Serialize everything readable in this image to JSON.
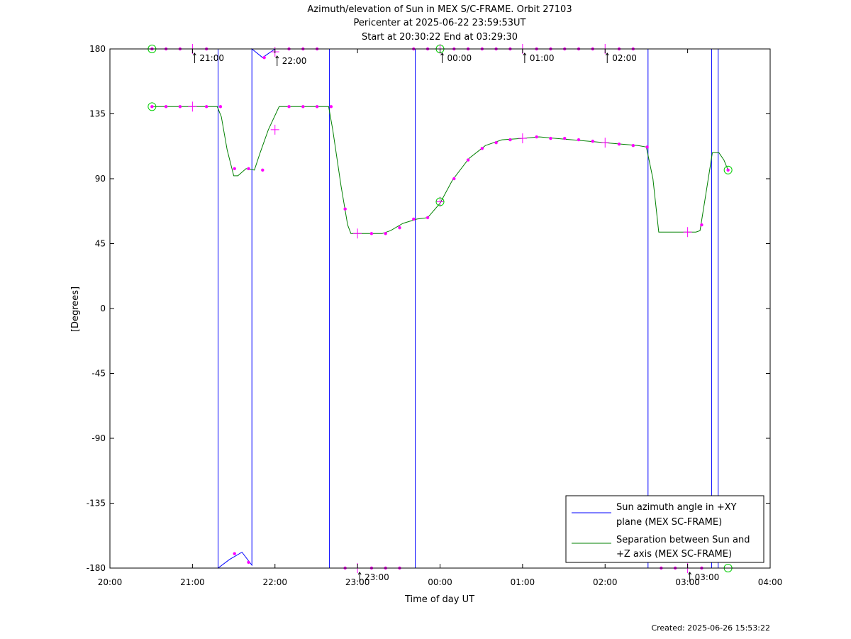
{
  "titles": [
    "Azimuth/elevation of Sun in MEX S/C-FRAME.  Orbit 27103",
    "Pericenter at 2025-06-22 23:59:53UT",
    "Start at 20:30:22 End at 03:29:30"
  ],
  "footer": "Created: 2025-06-26 15:53:22",
  "chart_data": {
    "type": "line",
    "title": "Azimuth/elevation of Sun in MEX S/C-FRAME.  Orbit 27103",
    "xlabel": "Time of day UT",
    "ylabel": "[Degrees]",
    "xlim": [
      20.0,
      28.0
    ],
    "ylim": [
      -180,
      180
    ],
    "x_ticks": [
      {
        "x": 20,
        "label": "20:00"
      },
      {
        "x": 21,
        "label": "21:00"
      },
      {
        "x": 22,
        "label": "22:00"
      },
      {
        "x": 23,
        "label": "23:00"
      },
      {
        "x": 24,
        "label": "00:00"
      },
      {
        "x": 25,
        "label": "01:00"
      },
      {
        "x": 26,
        "label": "02:00"
      },
      {
        "x": 27,
        "label": "03:00"
      },
      {
        "x": 28,
        "label": "04:00"
      }
    ],
    "y_ticks": [
      {
        "y": 180,
        "label": "180"
      },
      {
        "y": 135,
        "label": "135"
      },
      {
        "y": 90,
        "label": "90"
      },
      {
        "y": 45,
        "label": "45"
      },
      {
        "y": 0,
        "label": "0"
      },
      {
        "y": -45,
        "label": "-45"
      },
      {
        "y": -90,
        "label": "-90"
      },
      {
        "y": -135,
        "label": "-135"
      },
      {
        "y": -180,
        "label": "-180"
      }
    ],
    "grid": false,
    "legend_position": "bottom-right",
    "series": [
      {
        "name": "Sun azimuth angle in +XY plane (MEX SC-FRAME)",
        "legend_lines": [
          "Sun azimuth angle in +XY",
          "plane (MEX SC-FRAME)"
        ],
        "color": "#0000ff",
        "x": [
          20.51,
          21.31,
          21.31,
          21.45,
          21.6,
          21.72,
          21.72,
          21.85,
          22.0,
          22.65,
          22.66,
          22.66,
          24.0,
          23.7,
          23.7,
          24.0,
          25.0,
          26.0,
          26.51,
          26.52,
          26.52,
          27.0,
          27.28,
          27.29,
          27.29,
          27.3,
          27.36,
          27.37,
          27.37,
          27.4,
          27.49
        ],
        "y": [
          180,
          180,
          -180,
          -174,
          -169,
          -178,
          180,
          174,
          180,
          180,
          180,
          -180,
          -180,
          -180,
          180,
          180,
          180,
          180,
          180,
          180,
          -180,
          -180,
          -180,
          -180,
          180,
          180,
          180,
          180,
          -180,
          -180,
          -180
        ]
      },
      {
        "name": "Separation between Sun and +Z axis (MEX SC-FRAME)",
        "legend_lines": [
          "Separation between Sun and",
          "+Z axis (MEX SC-FRAME)"
        ],
        "color": "#008000",
        "x": [
          20.51,
          20.7,
          20.85,
          21.0,
          21.15,
          21.3,
          21.35,
          21.42,
          21.5,
          21.55,
          21.65,
          21.75,
          21.82,
          21.92,
          22.05,
          22.15,
          22.3,
          22.45,
          22.65,
          22.7,
          22.8,
          22.88,
          22.92,
          23.0,
          23.15,
          23.3,
          23.4,
          23.55,
          23.72,
          23.85,
          24.0,
          24.15,
          24.35,
          24.55,
          24.75,
          25.0,
          25.2,
          25.4,
          25.6,
          25.8,
          26.0,
          26.2,
          26.4,
          26.5,
          26.58,
          26.65,
          26.7,
          26.8,
          26.95,
          27.1,
          27.15,
          27.22,
          27.3,
          27.38,
          27.44,
          27.49
        ],
        "y": [
          140,
          140,
          140,
          140,
          140,
          140,
          133,
          110,
          92,
          92,
          97,
          96,
          108,
          124,
          140,
          140,
          140,
          140,
          140,
          124,
          85,
          58,
          52,
          52,
          52,
          52,
          54,
          59,
          62,
          63,
          73,
          89,
          104,
          113,
          117,
          118,
          119,
          118,
          117,
          116,
          115,
          114,
          113,
          112,
          90,
          53,
          53,
          53,
          53,
          53,
          54,
          79,
          108,
          108,
          103,
          96
        ]
      }
    ],
    "markers": {
      "color": "#ff00ff",
      "dots": [
        {
          "x": 20.51,
          "y": 180
        },
        {
          "x": 20.68,
          "y": 180
        },
        {
          "x": 20.85,
          "y": 180
        },
        {
          "x": 21.17,
          "y": 180
        },
        {
          "x": 21.87,
          "y": 174
        },
        {
          "x": 22.17,
          "y": 180
        },
        {
          "x": 22.34,
          "y": 180
        },
        {
          "x": 22.51,
          "y": 180
        },
        {
          "x": 23.68,
          "y": 180
        },
        {
          "x": 23.85,
          "y": 180
        },
        {
          "x": 24.17,
          "y": 180
        },
        {
          "x": 24.34,
          "y": 180
        },
        {
          "x": 24.51,
          "y": 180
        },
        {
          "x": 24.68,
          "y": 180
        },
        {
          "x": 24.85,
          "y": 180
        },
        {
          "x": 25.17,
          "y": 180
        },
        {
          "x": 25.34,
          "y": 180
        },
        {
          "x": 25.51,
          "y": 180
        },
        {
          "x": 25.68,
          "y": 180
        },
        {
          "x": 25.85,
          "y": 180
        },
        {
          "x": 26.17,
          "y": 180
        },
        {
          "x": 26.34,
          "y": 180
        },
        {
          "x": 21.51,
          "y": -170
        },
        {
          "x": 21.68,
          "y": -176
        },
        {
          "x": 22.85,
          "y": -180
        },
        {
          "x": 23.17,
          "y": -180
        },
        {
          "x": 23.34,
          "y": -180
        },
        {
          "x": 23.51,
          "y": -180
        },
        {
          "x": 26.68,
          "y": -180
        },
        {
          "x": 26.85,
          "y": -180
        },
        {
          "x": 27.17,
          "y": -180
        },
        {
          "x": 20.51,
          "y": 140
        },
        {
          "x": 20.68,
          "y": 140
        },
        {
          "x": 20.85,
          "y": 140
        },
        {
          "x": 21.17,
          "y": 140
        },
        {
          "x": 21.34,
          "y": 140
        },
        {
          "x": 21.51,
          "y": 97
        },
        {
          "x": 21.68,
          "y": 97
        },
        {
          "x": 21.85,
          "y": 96
        },
        {
          "x": 22.17,
          "y": 140
        },
        {
          "x": 22.34,
          "y": 140
        },
        {
          "x": 22.51,
          "y": 140
        },
        {
          "x": 22.68,
          "y": 140
        },
        {
          "x": 22.85,
          "y": 69
        },
        {
          "x": 23.17,
          "y": 52
        },
        {
          "x": 23.34,
          "y": 52
        },
        {
          "x": 23.51,
          "y": 56
        },
        {
          "x": 23.68,
          "y": 62
        },
        {
          "x": 23.85,
          "y": 63
        },
        {
          "x": 24.17,
          "y": 90
        },
        {
          "x": 24.34,
          "y": 103
        },
        {
          "x": 24.51,
          "y": 111
        },
        {
          "x": 24.68,
          "y": 115
        },
        {
          "x": 24.85,
          "y": 117
        },
        {
          "x": 25.17,
          "y": 119
        },
        {
          "x": 25.34,
          "y": 118
        },
        {
          "x": 25.51,
          "y": 118
        },
        {
          "x": 25.68,
          "y": 117
        },
        {
          "x": 25.85,
          "y": 116
        },
        {
          "x": 26.17,
          "y": 114
        },
        {
          "x": 26.34,
          "y": 113
        },
        {
          "x": 26.51,
          "y": 112
        },
        {
          "x": 27.17,
          "y": 58
        },
        {
          "x": 27.49,
          "y": 96
        }
      ],
      "crosses": [
        {
          "x": 21.0,
          "y": 180
        },
        {
          "x": 22.0,
          "y": 178
        },
        {
          "x": 24.0,
          "y": 180
        },
        {
          "x": 25.0,
          "y": 180
        },
        {
          "x": 26.0,
          "y": 180
        },
        {
          "x": 23.0,
          "y": -180
        },
        {
          "x": 27.0,
          "y": -180
        },
        {
          "x": 21.0,
          "y": 140
        },
        {
          "x": 22.0,
          "y": 124
        },
        {
          "x": 23.0,
          "y": 52
        },
        {
          "x": 24.0,
          "y": 74
        },
        {
          "x": 25.0,
          "y": 118
        },
        {
          "x": 26.0,
          "y": 115
        },
        {
          "x": 27.0,
          "y": 53
        }
      ],
      "circles": [
        {
          "x": 20.51,
          "y": 180
        },
        {
          "x": 20.51,
          "y": 140
        },
        {
          "x": 24.0,
          "y": 180
        },
        {
          "x": 24.0,
          "y": 74
        },
        {
          "x": 27.49,
          "y": -180
        },
        {
          "x": 27.49,
          "y": 96
        }
      ]
    },
    "annotations": [
      {
        "label": "21:00",
        "x": 21.0,
        "y": 180
      },
      {
        "label": "22:00",
        "x": 22.0,
        "y": 178
      },
      {
        "label": "00:00",
        "x": 24.0,
        "y": 180
      },
      {
        "label": "01:00",
        "x": 25.0,
        "y": 180
      },
      {
        "label": "02:00",
        "x": 26.0,
        "y": 180
      },
      {
        "label": "23:00",
        "x": 23.0,
        "y": -180
      },
      {
        "label": "03:00",
        "x": 27.0,
        "y": -180
      }
    ]
  }
}
